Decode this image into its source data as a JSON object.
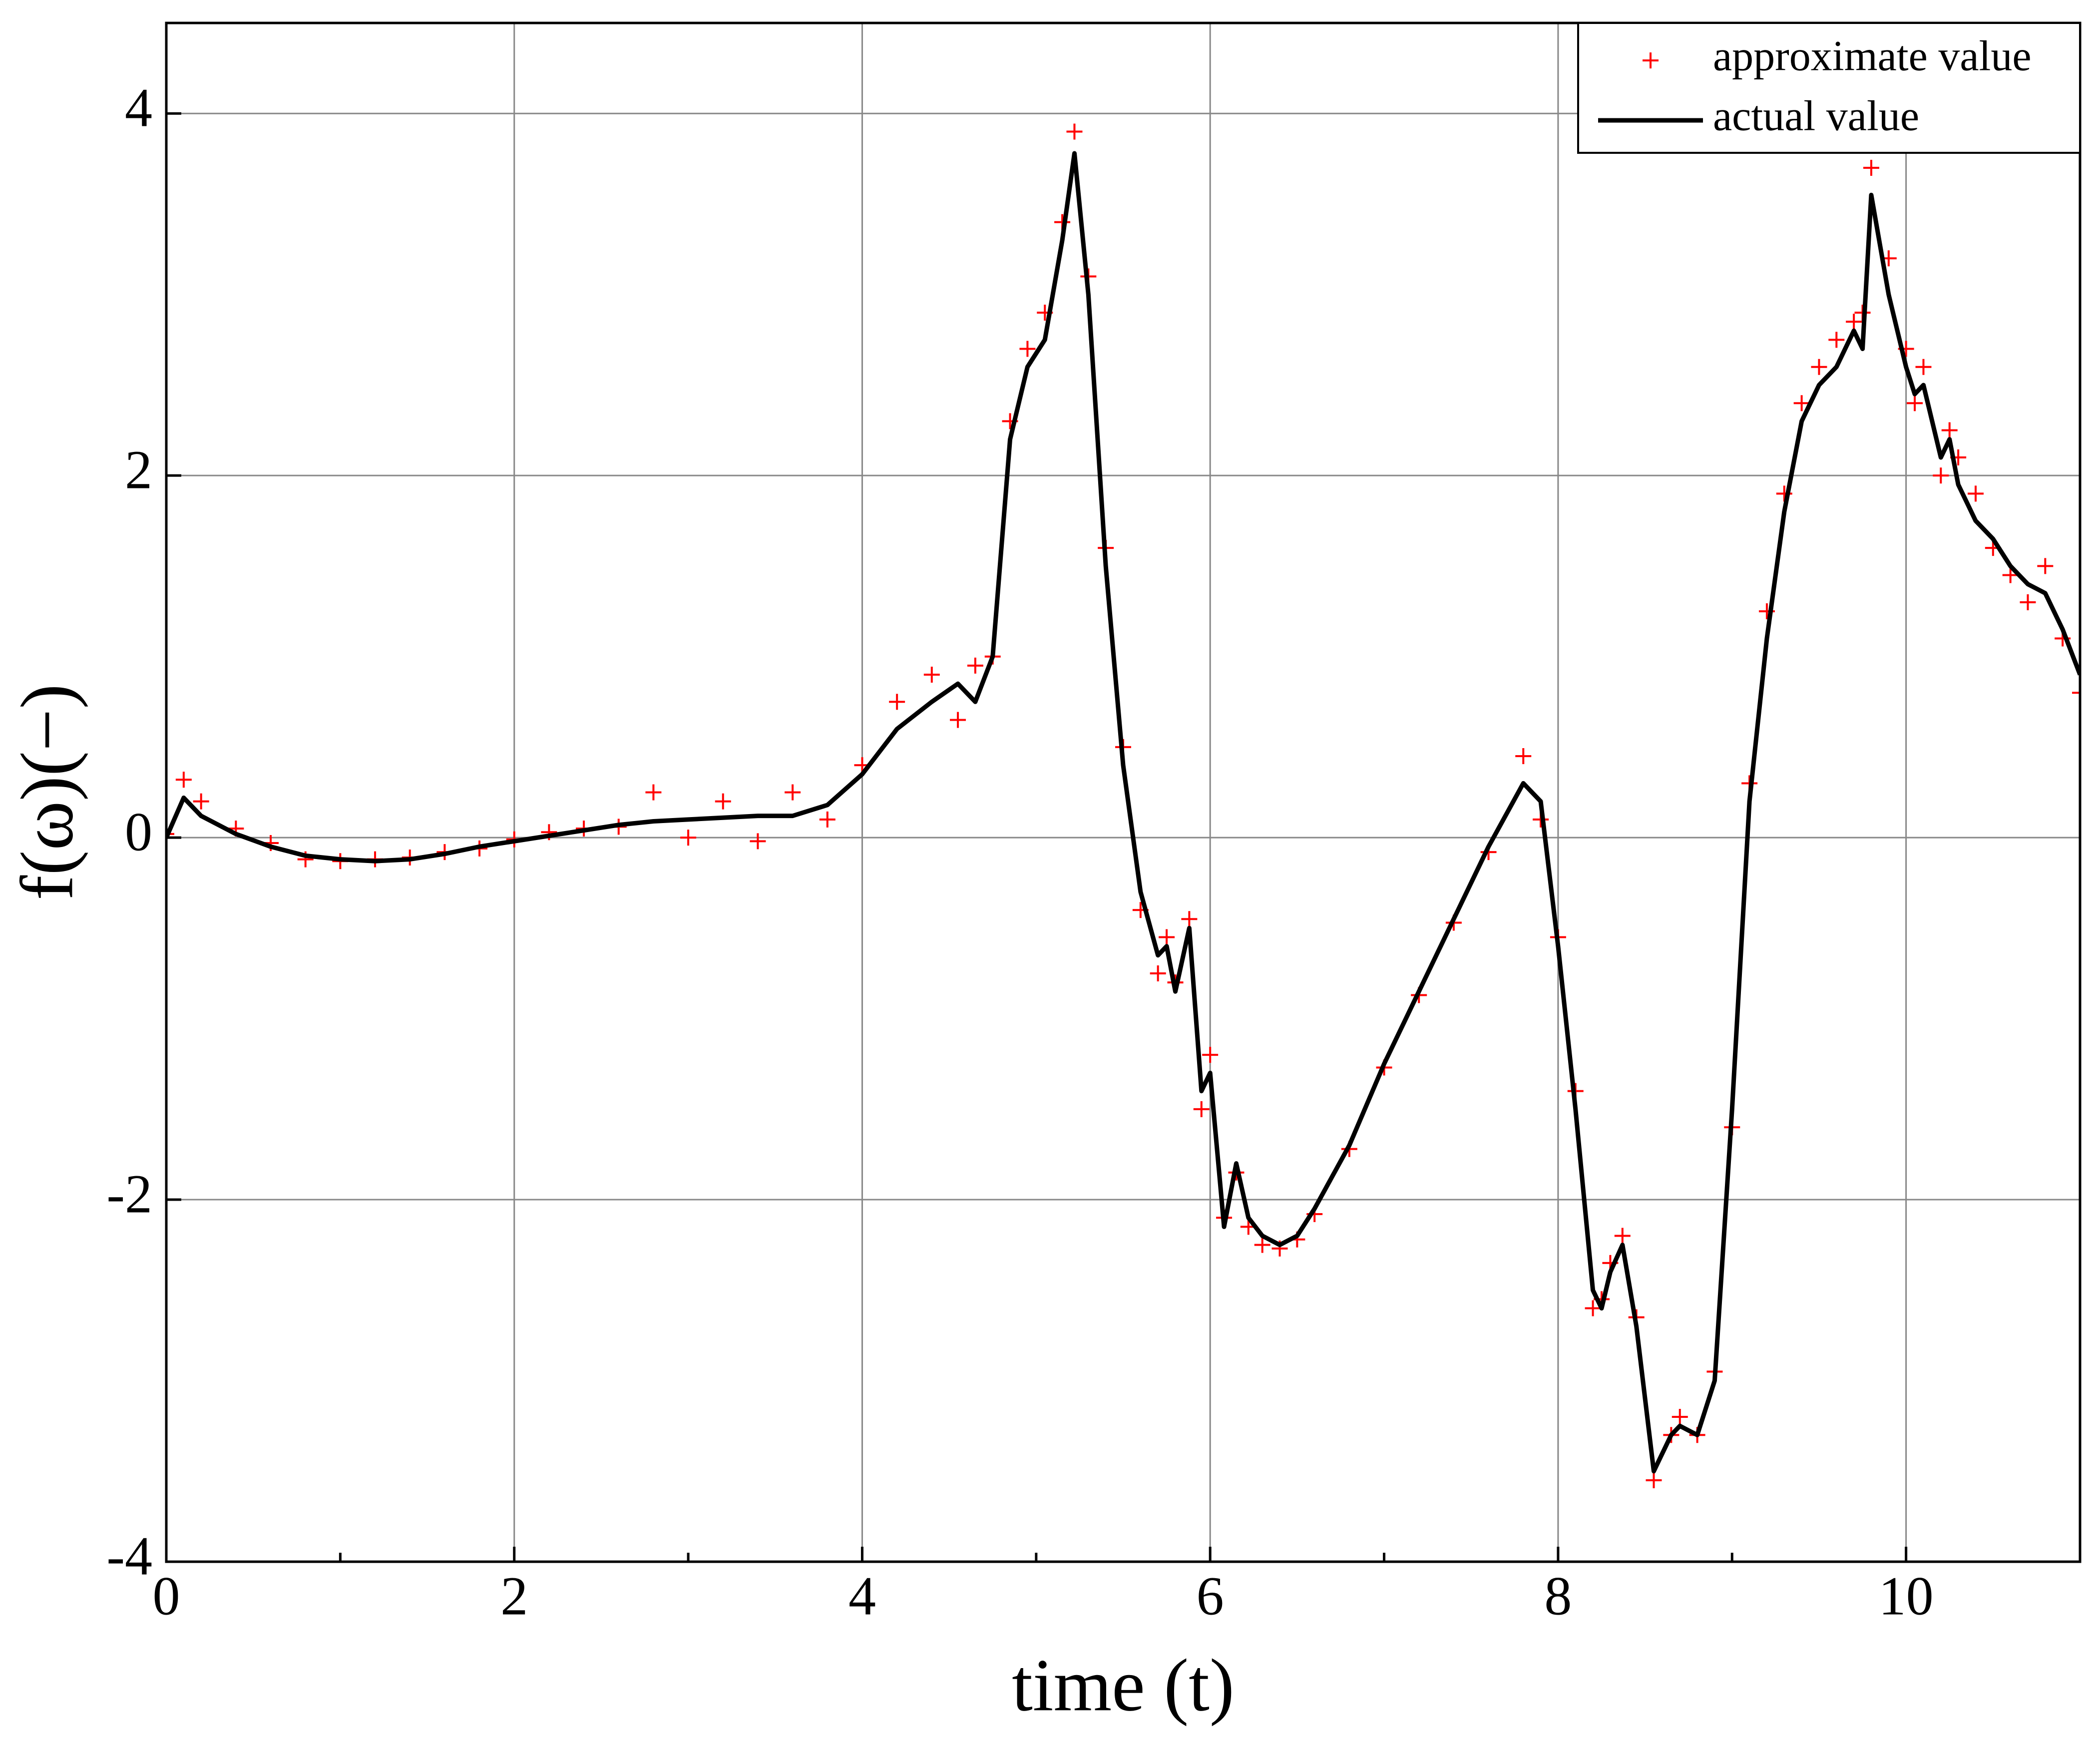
{
  "chart_data": {
    "type": "line",
    "xlabel": "time (t)",
    "ylabel": "f(ω)(−)",
    "x": [
      0,
      0.1,
      0.2,
      0.4,
      0.6,
      0.8,
      1.0,
      1.2,
      1.4,
      1.6,
      1.8,
      2.0,
      2.2,
      2.4,
      2.6,
      2.8,
      3.0,
      3.2,
      3.4,
      3.6,
      3.8,
      4.0,
      4.2,
      4.4,
      4.55,
      4.65,
      4.75,
      4.85,
      4.95,
      5.05,
      5.15,
      5.22,
      5.3,
      5.4,
      5.5,
      5.6,
      5.7,
      5.75,
      5.8,
      5.88,
      5.95,
      6.0,
      6.08,
      6.15,
      6.22,
      6.3,
      6.4,
      6.5,
      6.6,
      6.8,
      7.0,
      7.2,
      7.4,
      7.6,
      7.8,
      7.9,
      8.0,
      8.1,
      8.2,
      8.25,
      8.3,
      8.37,
      8.45,
      8.55,
      8.65,
      8.7,
      8.8,
      8.9,
      9.0,
      9.1,
      9.2,
      9.3,
      9.4,
      9.5,
      9.6,
      9.7,
      9.75,
      9.8,
      9.9,
      10.0,
      10.05,
      10.1,
      10.2,
      10.25,
      10.3,
      10.4,
      10.5,
      10.6,
      10.7,
      10.8,
      10.9,
      11.0
    ],
    "series": [
      {
        "name": "approximate value",
        "color": "#ff0000",
        "marker": "+",
        "values": [
          0.02,
          0.32,
          0.2,
          0.05,
          -0.03,
          -0.12,
          -0.13,
          -0.12,
          -0.11,
          -0.08,
          -0.06,
          -0.01,
          0.03,
          0.05,
          0.06,
          0.25,
          0.0,
          0.2,
          -0.02,
          0.25,
          0.1,
          0.4,
          0.75,
          0.9,
          0.65,
          0.95,
          1.0,
          2.3,
          2.7,
          2.9,
          3.4,
          3.9,
          3.1,
          1.6,
          0.5,
          -0.4,
          -0.75,
          -0.55,
          -0.8,
          -0.45,
          -1.5,
          -1.2,
          -2.1,
          -1.85,
          -2.15,
          -2.25,
          -2.27,
          -2.22,
          -2.08,
          -1.72,
          -1.27,
          -0.87,
          -0.47,
          -0.08,
          0.45,
          0.1,
          -0.55,
          -1.4,
          -2.6,
          -2.55,
          -2.35,
          -2.2,
          -2.65,
          -3.55,
          -3.3,
          -3.2,
          -3.3,
          -2.95,
          -1.6,
          0.3,
          1.25,
          1.9,
          2.4,
          2.6,
          2.75,
          2.85,
          2.9,
          3.7,
          3.2,
          2.7,
          2.4,
          2.6,
          2.0,
          2.25,
          2.1,
          1.9,
          1.6,
          1.45,
          1.3,
          1.5,
          1.1,
          0.8
        ]
      },
      {
        "name": "actual value",
        "color": "#000000",
        "values": [
          0,
          0.22,
          0.12,
          0.02,
          -0.05,
          -0.1,
          -0.12,
          -0.13,
          -0.12,
          -0.09,
          -0.05,
          -0.02,
          0.01,
          0.04,
          0.07,
          0.09,
          0.1,
          0.11,
          0.12,
          0.12,
          0.18,
          0.35,
          0.6,
          0.75,
          0.85,
          0.75,
          1.0,
          2.2,
          2.6,
          2.75,
          3.3,
          3.78,
          3.0,
          1.5,
          0.4,
          -0.3,
          -0.65,
          -0.6,
          -0.85,
          -0.5,
          -1.4,
          -1.3,
          -2.15,
          -1.8,
          -2.1,
          -2.2,
          -2.25,
          -2.2,
          -2.05,
          -1.7,
          -1.25,
          -0.85,
          -0.45,
          -0.05,
          0.3,
          0.2,
          -0.6,
          -1.5,
          -2.5,
          -2.6,
          -2.4,
          -2.25,
          -2.7,
          -3.5,
          -3.3,
          -3.25,
          -3.3,
          -3.0,
          -1.5,
          0.2,
          1.1,
          1.8,
          2.3,
          2.5,
          2.6,
          2.8,
          2.7,
          3.55,
          3.0,
          2.6,
          2.45,
          2.5,
          2.1,
          2.2,
          1.95,
          1.75,
          1.65,
          1.5,
          1.4,
          1.35,
          1.15,
          0.9
        ]
      }
    ],
    "xlim": [
      0,
      11
    ],
    "xticks": [
      0,
      2,
      4,
      6,
      8,
      10
    ],
    "xminorticks": [
      1,
      3,
      5,
      7,
      9
    ],
    "ylim": [
      -4,
      4.5
    ],
    "yticks": [
      -4,
      -2,
      0,
      2,
      4
    ],
    "grid": true,
    "legend": "top-right"
  }
}
